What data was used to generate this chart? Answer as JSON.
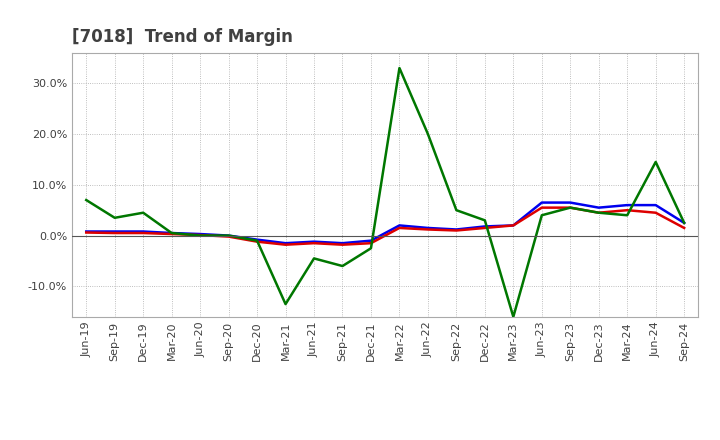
{
  "title": "[7018]  Trend of Margin",
  "title_color": "#404040",
  "title_fontsize": 12,
  "background_color": "#ffffff",
  "grid_color": "#aaaaaa",
  "ylim": [
    -16,
    36
  ],
  "yticks": [
    -10,
    0,
    10,
    20,
    30
  ],
  "ytick_labels": [
    "-10.0%",
    "0.0%",
    "10.0%",
    "20.0%",
    "30.0%"
  ],
  "x_labels": [
    "Jun-19",
    "Sep-19",
    "Dec-19",
    "Mar-20",
    "Jun-20",
    "Sep-20",
    "Dec-20",
    "Mar-21",
    "Jun-21",
    "Sep-21",
    "Dec-21",
    "Mar-22",
    "Jun-22",
    "Sep-22",
    "Dec-22",
    "Mar-23",
    "Jun-23",
    "Sep-23",
    "Dec-23",
    "Mar-24",
    "Jun-24",
    "Sep-24"
  ],
  "ordinary_income": [
    0.8,
    0.8,
    0.8,
    0.5,
    0.3,
    0.0,
    -0.8,
    -1.5,
    -1.2,
    -1.5,
    -1.0,
    2.0,
    1.5,
    1.2,
    1.8,
    2.0,
    6.5,
    6.5,
    5.5,
    6.0,
    6.0,
    2.5
  ],
  "net_income": [
    0.6,
    0.5,
    0.5,
    0.3,
    0.1,
    -0.2,
    -1.2,
    -1.8,
    -1.5,
    -1.8,
    -1.5,
    1.5,
    1.2,
    1.0,
    1.5,
    2.0,
    5.5,
    5.5,
    4.5,
    5.0,
    4.5,
    1.5
  ],
  "operating_cashflow": [
    7.0,
    3.5,
    4.5,
    0.5,
    0.0,
    0.0,
    -1.0,
    -13.5,
    -4.5,
    -6.0,
    -2.5,
    33.0,
    20.0,
    5.0,
    3.0,
    -16.0,
    4.0,
    5.5,
    4.5,
    4.0,
    14.5,
    2.5
  ],
  "ordinary_income_color": "#0000ee",
  "net_income_color": "#dd0000",
  "operating_cashflow_color": "#007700",
  "line_width": 1.8,
  "legend_fontsize": 9,
  "tick_fontsize": 8,
  "tick_color": "#404040"
}
